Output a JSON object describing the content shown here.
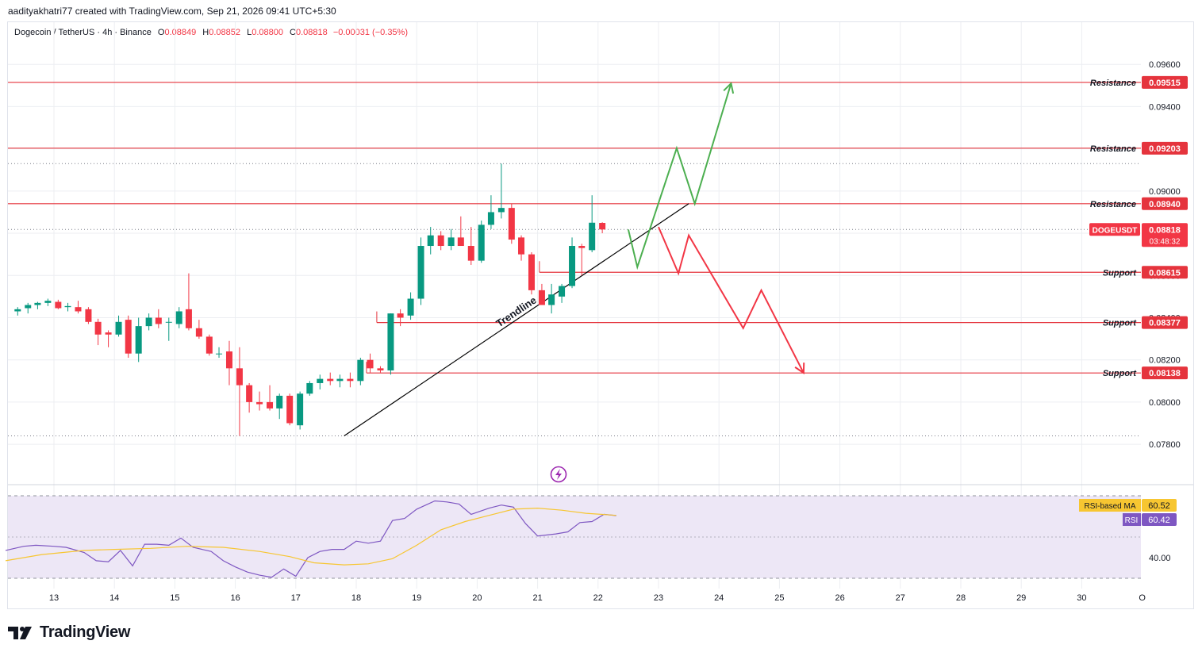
{
  "header": {
    "credit": "aadityakhatri77 created with TradingView.com, Sep 21, 2026 09:41 UTC+5:30"
  },
  "symbol": {
    "title": "Dogecoin / TetherUS · 4h · Binance",
    "open_label": "O",
    "open": "0.08849",
    "high_label": "H",
    "high": "0.08852",
    "low_label": "L",
    "low": "0.08800",
    "close_label": "C",
    "close": "0.08818",
    "change": "−0.00031 (−0.35%)"
  },
  "footer": {
    "brand": "TradingView"
  },
  "colors": {
    "up": "#089981",
    "down": "#f23645",
    "level_line": "#e5343d",
    "trendline": "#000000",
    "bull_path": "#4caf50",
    "bear_path": "#f23645",
    "rsi": "#7e57c2",
    "rsi_ma": "#f7c631",
    "rsi_band": "#ede7f6",
    "grid": "#eceef2"
  },
  "chart_data": [
    {
      "type": "candlestick",
      "instrument": "DOGEUSDT",
      "timeframe": "4h",
      "x_ticks": [
        "13",
        "14",
        "15",
        "16",
        "17",
        "18",
        "19",
        "20",
        "21",
        "22",
        "23",
        "24",
        "25",
        "26",
        "27",
        "28",
        "29",
        "30",
        "O"
      ],
      "y_ticks": [
        "0.07800",
        "0.08000",
        "0.08200",
        "0.08400",
        "0.08600",
        "0.08800",
        "0.09000",
        "0.09200",
        "0.09400",
        "0.09600"
      ],
      "ylim": [
        0.0762,
        0.098
      ],
      "candles": [
        {
          "t": 12.4,
          "o": 0.0843,
          "h": 0.0845,
          "l": 0.0841,
          "c": 0.0844
        },
        {
          "t": 12.57,
          "o": 0.08445,
          "h": 0.0847,
          "l": 0.0842,
          "c": 0.0846
        },
        {
          "t": 12.73,
          "o": 0.0846,
          "h": 0.08475,
          "l": 0.0844,
          "c": 0.0847
        },
        {
          "t": 12.9,
          "o": 0.0847,
          "h": 0.0849,
          "l": 0.08455,
          "c": 0.0848
        },
        {
          "t": 13.07,
          "o": 0.08475,
          "h": 0.08485,
          "l": 0.0844,
          "c": 0.08445
        },
        {
          "t": 13.23,
          "o": 0.0845,
          "h": 0.0847,
          "l": 0.0843,
          "c": 0.08455
        },
        {
          "t": 13.4,
          "o": 0.0845,
          "h": 0.0848,
          "l": 0.0842,
          "c": 0.0843
        },
        {
          "t": 13.57,
          "o": 0.0844,
          "h": 0.0845,
          "l": 0.0837,
          "c": 0.0838
        },
        {
          "t": 13.73,
          "o": 0.0838,
          "h": 0.08395,
          "l": 0.0827,
          "c": 0.0832
        },
        {
          "t": 13.9,
          "o": 0.0833,
          "h": 0.0834,
          "l": 0.0826,
          "c": 0.0832
        },
        {
          "t": 14.07,
          "o": 0.0832,
          "h": 0.0841,
          "l": 0.0831,
          "c": 0.0838
        },
        {
          "t": 14.23,
          "o": 0.0839,
          "h": 0.0841,
          "l": 0.0821,
          "c": 0.0823
        },
        {
          "t": 14.4,
          "o": 0.0823,
          "h": 0.084,
          "l": 0.0819,
          "c": 0.0836
        },
        {
          "t": 14.57,
          "o": 0.0836,
          "h": 0.0842,
          "l": 0.0834,
          "c": 0.084
        },
        {
          "t": 14.73,
          "o": 0.084,
          "h": 0.0844,
          "l": 0.0835,
          "c": 0.0837
        },
        {
          "t": 14.9,
          "o": 0.0838,
          "h": 0.084,
          "l": 0.0829,
          "c": 0.0838
        },
        {
          "t": 15.07,
          "o": 0.0837,
          "h": 0.0845,
          "l": 0.0835,
          "c": 0.0843
        },
        {
          "t": 15.23,
          "o": 0.0844,
          "h": 0.0861,
          "l": 0.0834,
          "c": 0.0835
        },
        {
          "t": 15.4,
          "o": 0.0835,
          "h": 0.0839,
          "l": 0.083,
          "c": 0.0831
        },
        {
          "t": 15.57,
          "o": 0.0831,
          "h": 0.0832,
          "l": 0.0822,
          "c": 0.0823
        },
        {
          "t": 15.73,
          "o": 0.0823,
          "h": 0.0826,
          "l": 0.0821,
          "c": 0.0823
        },
        {
          "t": 15.9,
          "o": 0.0824,
          "h": 0.0829,
          "l": 0.0808,
          "c": 0.0816
        },
        {
          "t": 16.07,
          "o": 0.0816,
          "h": 0.0826,
          "l": 0.0784,
          "c": 0.0808
        },
        {
          "t": 16.23,
          "o": 0.0808,
          "h": 0.0809,
          "l": 0.0795,
          "c": 0.08
        },
        {
          "t": 16.4,
          "o": 0.08,
          "h": 0.0805,
          "l": 0.0796,
          "c": 0.0799
        },
        {
          "t": 16.57,
          "o": 0.08,
          "h": 0.0808,
          "l": 0.0796,
          "c": 0.0797
        },
        {
          "t": 16.73,
          "o": 0.0797,
          "h": 0.0804,
          "l": 0.0792,
          "c": 0.0803
        },
        {
          "t": 16.9,
          "o": 0.0803,
          "h": 0.0804,
          "l": 0.0789,
          "c": 0.079
        },
        {
          "t": 17.07,
          "o": 0.0789,
          "h": 0.0805,
          "l": 0.0787,
          "c": 0.0804
        },
        {
          "t": 17.23,
          "o": 0.0804,
          "h": 0.081,
          "l": 0.0803,
          "c": 0.0809
        },
        {
          "t": 17.4,
          "o": 0.0809,
          "h": 0.0813,
          "l": 0.0806,
          "c": 0.0811
        },
        {
          "t": 17.57,
          "o": 0.0811,
          "h": 0.0814,
          "l": 0.0808,
          "c": 0.081
        },
        {
          "t": 17.73,
          "o": 0.081,
          "h": 0.0813,
          "l": 0.0807,
          "c": 0.0811
        },
        {
          "t": 17.9,
          "o": 0.0811,
          "h": 0.0814,
          "l": 0.0807,
          "c": 0.081
        },
        {
          "t": 18.07,
          "o": 0.081,
          "h": 0.0821,
          "l": 0.0808,
          "c": 0.082
        },
        {
          "t": 18.23,
          "o": 0.082,
          "h": 0.0823,
          "l": 0.0814,
          "c": 0.0816
        },
        {
          "t": 18.4,
          "o": 0.0816,
          "h": 0.0817,
          "l": 0.0814,
          "c": 0.0815
        },
        {
          "t": 18.57,
          "o": 0.0815,
          "h": 0.0842,
          "l": 0.0813,
          "c": 0.0842
        },
        {
          "t": 18.73,
          "o": 0.0842,
          "h": 0.0844,
          "l": 0.0836,
          "c": 0.084
        },
        {
          "t": 18.9,
          "o": 0.0841,
          "h": 0.0852,
          "l": 0.0839,
          "c": 0.0849
        },
        {
          "t": 19.07,
          "o": 0.0849,
          "h": 0.0878,
          "l": 0.0846,
          "c": 0.0874
        },
        {
          "t": 19.23,
          "o": 0.0874,
          "h": 0.0883,
          "l": 0.087,
          "c": 0.0879
        },
        {
          "t": 19.4,
          "o": 0.0879,
          "h": 0.0881,
          "l": 0.0872,
          "c": 0.0874
        },
        {
          "t": 19.57,
          "o": 0.0874,
          "h": 0.0882,
          "l": 0.0872,
          "c": 0.0878
        },
        {
          "t": 19.73,
          "o": 0.0878,
          "h": 0.0888,
          "l": 0.0874,
          "c": 0.0874
        },
        {
          "t": 19.9,
          "o": 0.0874,
          "h": 0.0883,
          "l": 0.0865,
          "c": 0.0867
        },
        {
          "t": 20.07,
          "o": 0.0867,
          "h": 0.0886,
          "l": 0.0866,
          "c": 0.0884
        },
        {
          "t": 20.23,
          "o": 0.0884,
          "h": 0.0898,
          "l": 0.0882,
          "c": 0.089
        },
        {
          "t": 20.4,
          "o": 0.089,
          "h": 0.0913,
          "l": 0.0887,
          "c": 0.0892
        },
        {
          "t": 20.57,
          "o": 0.0892,
          "h": 0.0894,
          "l": 0.0875,
          "c": 0.0877
        },
        {
          "t": 20.73,
          "o": 0.0878,
          "h": 0.0879,
          "l": 0.0867,
          "c": 0.087
        },
        {
          "t": 20.9,
          "o": 0.087,
          "h": 0.0871,
          "l": 0.0851,
          "c": 0.0853
        },
        {
          "t": 21.07,
          "o": 0.0853,
          "h": 0.0856,
          "l": 0.0846,
          "c": 0.0846
        },
        {
          "t": 21.23,
          "o": 0.0846,
          "h": 0.0856,
          "l": 0.0842,
          "c": 0.0851
        },
        {
          "t": 21.4,
          "o": 0.085,
          "h": 0.0856,
          "l": 0.0847,
          "c": 0.0855
        },
        {
          "t": 21.57,
          "o": 0.0855,
          "h": 0.0878,
          "l": 0.0854,
          "c": 0.0874
        },
        {
          "t": 21.73,
          "o": 0.0874,
          "h": 0.0875,
          "l": 0.086,
          "c": 0.0873
        },
        {
          "t": 21.9,
          "o": 0.0872,
          "h": 0.0898,
          "l": 0.0871,
          "c": 0.0885
        },
        {
          "t": 22.07,
          "o": 0.08849,
          "h": 0.08852,
          "l": 0.088,
          "c": 0.08818
        }
      ],
      "horizontal_levels": [
        {
          "label": "Resistance",
          "value": 0.09515,
          "price_label": "0.09515"
        },
        {
          "label": "Resistance",
          "value": 0.09203,
          "price_label": "0.09203"
        },
        {
          "label": "Resistance",
          "value": 0.0894,
          "price_label": "0.08940"
        },
        {
          "label": "Support",
          "value": 0.08615,
          "price_label": "0.08615"
        },
        {
          "label": "Support",
          "value": 0.08377,
          "price_label": "0.08377"
        },
        {
          "label": "Support",
          "value": 0.08138,
          "price_label": "0.08138"
        }
      ],
      "dotted_levels": [
        0.0913,
        0.08818,
        0.0784
      ],
      "trendline": {
        "label": "Trendline",
        "from": {
          "t": 17.8,
          "v": 0.0784
        },
        "to": {
          "t": 23.5,
          "v": 0.0894
        }
      },
      "projection_bull": [
        {
          "t": 22.5,
          "v": 0.08818
        },
        {
          "t": 22.65,
          "v": 0.0864
        },
        {
          "t": 23.3,
          "v": 0.09203
        },
        {
          "t": 23.6,
          "v": 0.0894
        },
        {
          "t": 24.2,
          "v": 0.0951
        }
      ],
      "projection_bear": [
        {
          "t": 23.0,
          "v": 0.0883
        },
        {
          "t": 23.33,
          "v": 0.0861
        },
        {
          "t": 23.5,
          "v": 0.0879
        },
        {
          "t": 24.4,
          "v": 0.0835
        },
        {
          "t": 24.7,
          "v": 0.0853
        },
        {
          "t": 25.4,
          "v": 0.08138
        }
      ],
      "last_price": {
        "symbol": "DOGEUSDT",
        "value": "0.08818",
        "countdown": "03:48:32"
      }
    },
    {
      "type": "line",
      "title": "RSI",
      "ylim": [
        25,
        75
      ],
      "y_ticks": [
        "40.00"
      ],
      "bands": [
        30,
        70
      ],
      "series": [
        {
          "name": "RSI",
          "last_label": "60.42",
          "x": [
            12.2,
            12.5,
            12.7,
            13.0,
            13.2,
            13.5,
            13.7,
            13.9,
            14.1,
            14.3,
            14.5,
            14.7,
            14.9,
            15.1,
            15.3,
            15.6,
            15.8,
            16.0,
            16.2,
            16.4,
            16.6,
            16.8,
            17.0,
            17.2,
            17.4,
            17.6,
            17.8,
            18.0,
            18.2,
            18.4,
            18.6,
            18.8,
            19.0,
            19.3,
            19.5,
            19.7,
            19.9,
            20.2,
            20.4,
            20.6,
            20.8,
            21.0,
            21.3,
            21.5,
            21.7,
            21.9,
            22.1,
            22.3
          ],
          "values": [
            43.5,
            45.5,
            46.0,
            45.5,
            45.0,
            42.5,
            38.5,
            38.0,
            43.5,
            36.0,
            46.5,
            46.5,
            46.0,
            49.5,
            45.0,
            43.0,
            38.5,
            35.5,
            33.0,
            31.5,
            30.5,
            34.5,
            31.0,
            40.0,
            43.0,
            44.0,
            44.0,
            48.0,
            47.0,
            48.0,
            58.0,
            59.0,
            63.5,
            67.5,
            67.0,
            66.0,
            61.0,
            64.0,
            65.5,
            64.5,
            56.5,
            50.5,
            51.5,
            52.5,
            57.0,
            57.5,
            61.0,
            60.4
          ]
        },
        {
          "name": "RSI-based MA",
          "last_label": "60.52",
          "x": [
            12.2,
            12.8,
            13.5,
            14.0,
            14.6,
            15.2,
            15.8,
            16.4,
            16.9,
            17.3,
            17.8,
            18.2,
            18.6,
            19.0,
            19.4,
            19.8,
            20.2,
            20.6,
            21.0,
            21.4,
            21.8,
            22.3
          ],
          "values": [
            38.5,
            41.5,
            43.5,
            44.0,
            44.5,
            45.5,
            45.0,
            43.0,
            40.5,
            37.5,
            36.5,
            37.0,
            39.5,
            46.0,
            53.5,
            57.5,
            60.5,
            63.5,
            64.0,
            63.0,
            61.5,
            60.5
          ]
        }
      ]
    }
  ]
}
